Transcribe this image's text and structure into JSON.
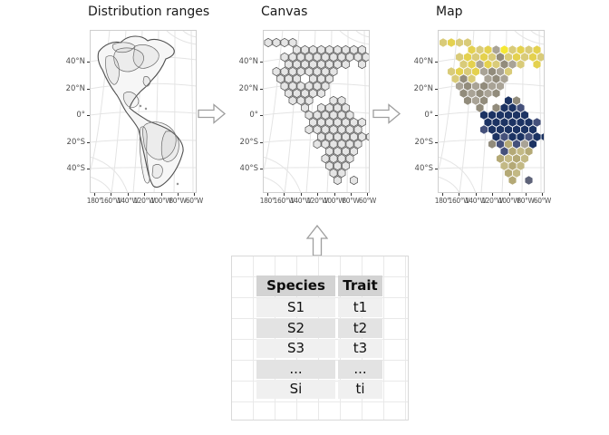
{
  "panels": [
    {
      "id": "distribution-ranges",
      "title": "Distribution ranges"
    },
    {
      "id": "canvas",
      "title": "Canvas"
    },
    {
      "id": "map",
      "title": "Map"
    }
  ],
  "axes": {
    "y_ticks": [
      "40°N",
      "20°N",
      "0°",
      "20°S",
      "40°S"
    ],
    "x_ticks": [
      "180°",
      "160°W",
      "140°W",
      "120°W",
      "100°W",
      "80°W",
      "60°W"
    ]
  },
  "canvas_panel": {
    "hex_fill": "#e5e5e5",
    "hex_stroke": "#4d4d4d",
    "mask": [
      "xxxx.........",
      "...xxxxxxxxx.",
      "..xxxxxxxxxxx",
      "..xxxxxxxx.x.",
      ".xxxxxxxx....",
      ".xxx.xxx.....",
      "..xxxxxx.....",
      "..xxxxx......",
      "...xxx..xx...",
      "....x.xxxx...",
      ".....xxxxxx..",
      ".....xxxxxxx.",
      ".....xxxxxxx.",
      "......xxxxxxx",
      "......xxxxxx.",
      ".......xxxx..",
      ".......xxxx..",
      ".......xxx...",
      "........xx...",
      "........x.x.."
    ]
  },
  "map_panel": {
    "palette": {
      "Y": "#e4d14f",
      "y": "#d9cb79",
      "H": "#f5e833",
      "G": "#928c7c",
      "g": "#a9a396",
      "B": "#1c3363",
      "b": "#45517b",
      "U": "#5e6379",
      "K": "#b4a976",
      "k": "#c3b985"
    },
    "mask": [
      "yYyy.........",
      "...YyYgHyYyY.",
      "..yYyYyGyYyYy",
      "..yYgYyGgy.Y.",
      ".yYyYgGgy....",
      ".yGy.gGg.....",
      "..gGgGgg.....",
      "..GgGgG......",
      "...GgG..BG...",
      "....G.GBBb...",
      ".....BBBBBB..",
      ".....BBBBBBb.",
      ".....bBBBBBB.",
      "......BbBBbBB",
      "......GbKbgB.",
      ".......bKkK..",
      ".......KkKk..",
      ".......kKk...",
      "........Kk...",
      "........K.U.."
    ]
  },
  "table": {
    "headers": [
      "Species",
      "Trait"
    ],
    "rows": [
      [
        "S1",
        "t1"
      ],
      [
        "S2",
        "t2"
      ],
      [
        "S3",
        "t3"
      ],
      [
        "...",
        "..."
      ],
      [
        "Si",
        "ti"
      ]
    ],
    "header_bg": "#d3d3d3",
    "row_bgs": [
      "#f0f0f0",
      "#e3e3e3"
    ]
  }
}
